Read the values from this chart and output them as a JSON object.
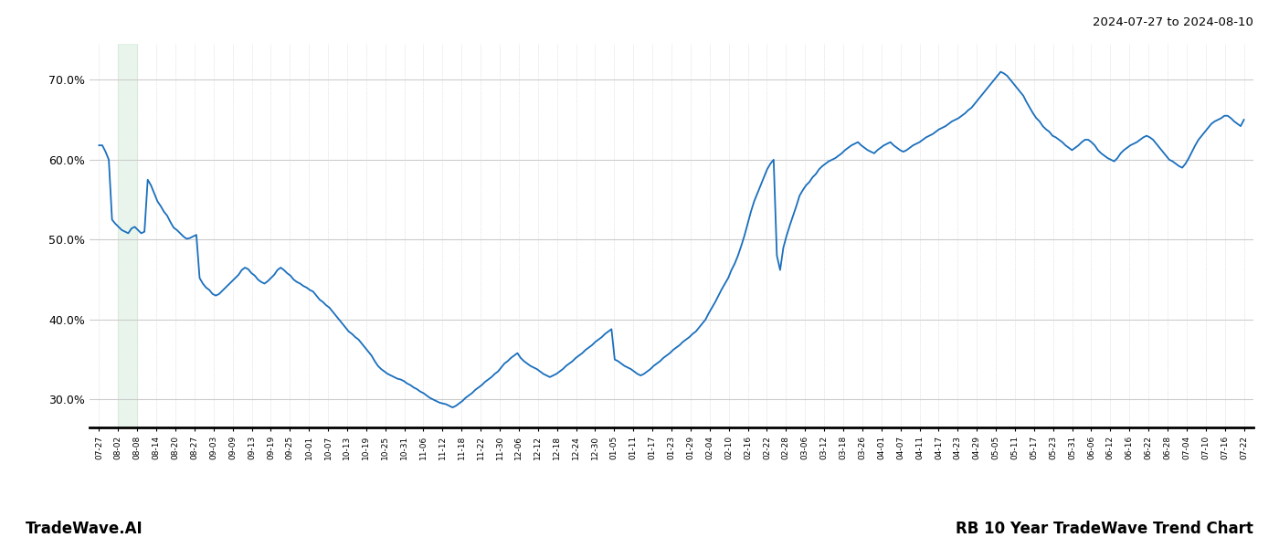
{
  "title_top_right": "2024-07-27 to 2024-08-10",
  "title_bottom_left": "TradeWave.AI",
  "title_bottom_right": "RB 10 Year TradeWave Trend Chart",
  "line_color": "#1a6fbd",
  "line_width": 1.3,
  "shade_color": "#d4edda",
  "shade_alpha": 0.5,
  "background_color": "#ffffff",
  "grid_color": "#cccccc",
  "ylim": [
    0.265,
    0.745
  ],
  "yticks": [
    0.3,
    0.4,
    0.5,
    0.6,
    0.7
  ],
  "ytick_labels": [
    "30.0%",
    "40.0%",
    "50.0%",
    "60.0%",
    "70.0%"
  ],
  "xtick_labels": [
    "07-27",
    "08-02",
    "08-08",
    "08-14",
    "08-20",
    "08-27",
    "09-03",
    "09-09",
    "09-13",
    "09-19",
    "09-25",
    "10-01",
    "10-07",
    "10-13",
    "10-19",
    "10-25",
    "10-31",
    "11-06",
    "11-12",
    "11-18",
    "11-22",
    "11-30",
    "12-06",
    "12-12",
    "12-18",
    "12-24",
    "12-30",
    "01-05",
    "01-11",
    "01-17",
    "01-23",
    "01-29",
    "02-04",
    "02-10",
    "02-16",
    "02-22",
    "02-28",
    "03-06",
    "03-12",
    "03-18",
    "03-26",
    "04-01",
    "04-07",
    "04-11",
    "04-17",
    "04-23",
    "04-29",
    "05-05",
    "05-11",
    "05-17",
    "05-23",
    "05-31",
    "06-06",
    "06-12",
    "06-16",
    "06-22",
    "06-28",
    "07-04",
    "07-10",
    "07-16",
    "07-22"
  ],
  "shade_xstart": 1,
  "shade_xend": 2,
  "values": [
    0.618,
    0.618,
    0.61,
    0.6,
    0.525,
    0.52,
    0.516,
    0.512,
    0.51,
    0.508,
    0.514,
    0.516,
    0.512,
    0.508,
    0.51,
    0.575,
    0.568,
    0.558,
    0.548,
    0.542,
    0.535,
    0.53,
    0.522,
    0.515,
    0.512,
    0.508,
    0.504,
    0.501,
    0.502,
    0.504,
    0.506,
    0.452,
    0.445,
    0.44,
    0.437,
    0.432,
    0.43,
    0.432,
    0.436,
    0.44,
    0.444,
    0.448,
    0.452,
    0.456,
    0.462,
    0.465,
    0.463,
    0.458,
    0.455,
    0.45,
    0.447,
    0.445,
    0.448,
    0.452,
    0.456,
    0.462,
    0.465,
    0.462,
    0.458,
    0.455,
    0.45,
    0.447,
    0.445,
    0.442,
    0.44,
    0.437,
    0.435,
    0.43,
    0.425,
    0.422,
    0.418,
    0.415,
    0.41,
    0.405,
    0.4,
    0.395,
    0.39,
    0.385,
    0.382,
    0.378,
    0.375,
    0.37,
    0.365,
    0.36,
    0.355,
    0.348,
    0.342,
    0.338,
    0.335,
    0.332,
    0.33,
    0.328,
    0.326,
    0.325,
    0.323,
    0.32,
    0.318,
    0.315,
    0.313,
    0.31,
    0.308,
    0.305,
    0.302,
    0.3,
    0.298,
    0.296,
    0.295,
    0.294,
    0.292,
    0.29,
    0.292,
    0.295,
    0.298,
    0.302,
    0.305,
    0.308,
    0.312,
    0.315,
    0.318,
    0.322,
    0.325,
    0.328,
    0.332,
    0.335,
    0.34,
    0.345,
    0.348,
    0.352,
    0.355,
    0.358,
    0.352,
    0.348,
    0.345,
    0.342,
    0.34,
    0.338,
    0.335,
    0.332,
    0.33,
    0.328,
    0.33,
    0.332,
    0.335,
    0.338,
    0.342,
    0.345,
    0.348,
    0.352,
    0.355,
    0.358,
    0.362,
    0.365,
    0.368,
    0.372,
    0.375,
    0.378,
    0.382,
    0.385,
    0.388,
    0.35,
    0.348,
    0.345,
    0.342,
    0.34,
    0.338,
    0.335,
    0.332,
    0.33,
    0.332,
    0.335,
    0.338,
    0.342,
    0.345,
    0.348,
    0.352,
    0.355,
    0.358,
    0.362,
    0.365,
    0.368,
    0.372,
    0.375,
    0.378,
    0.382,
    0.385,
    0.39,
    0.395,
    0.4,
    0.408,
    0.415,
    0.422,
    0.43,
    0.438,
    0.445,
    0.452,
    0.462,
    0.47,
    0.48,
    0.492,
    0.505,
    0.52,
    0.535,
    0.548,
    0.558,
    0.568,
    0.578,
    0.588,
    0.595,
    0.6,
    0.48,
    0.462,
    0.49,
    0.505,
    0.518,
    0.53,
    0.542,
    0.555,
    0.562,
    0.568,
    0.572,
    0.578,
    0.582,
    0.588,
    0.592,
    0.595,
    0.598,
    0.6,
    0.602,
    0.605,
    0.608,
    0.612,
    0.615,
    0.618,
    0.62,
    0.622,
    0.618,
    0.615,
    0.612,
    0.61,
    0.608,
    0.612,
    0.615,
    0.618,
    0.62,
    0.622,
    0.618,
    0.615,
    0.612,
    0.61,
    0.612,
    0.615,
    0.618,
    0.62,
    0.622,
    0.625,
    0.628,
    0.63,
    0.632,
    0.635,
    0.638,
    0.64,
    0.642,
    0.645,
    0.648,
    0.65,
    0.652,
    0.655,
    0.658,
    0.662,
    0.665,
    0.67,
    0.675,
    0.68,
    0.685,
    0.69,
    0.695,
    0.7,
    0.705,
    0.71,
    0.708,
    0.705,
    0.7,
    0.695,
    0.69,
    0.685,
    0.68,
    0.672,
    0.665,
    0.658,
    0.652,
    0.648,
    0.642,
    0.638,
    0.635,
    0.63,
    0.628,
    0.625,
    0.622,
    0.618,
    0.615,
    0.612,
    0.615,
    0.618,
    0.622,
    0.625,
    0.625,
    0.622,
    0.618,
    0.612,
    0.608,
    0.605,
    0.602,
    0.6,
    0.598,
    0.602,
    0.608,
    0.612,
    0.615,
    0.618,
    0.62,
    0.622,
    0.625,
    0.628,
    0.63,
    0.628,
    0.625,
    0.62,
    0.615,
    0.61,
    0.605,
    0.6,
    0.598,
    0.595,
    0.592,
    0.59,
    0.595,
    0.602,
    0.61,
    0.618,
    0.625,
    0.63,
    0.635,
    0.64,
    0.645,
    0.648,
    0.65,
    0.652,
    0.655,
    0.655,
    0.652,
    0.648,
    0.645,
    0.642,
    0.65
  ]
}
